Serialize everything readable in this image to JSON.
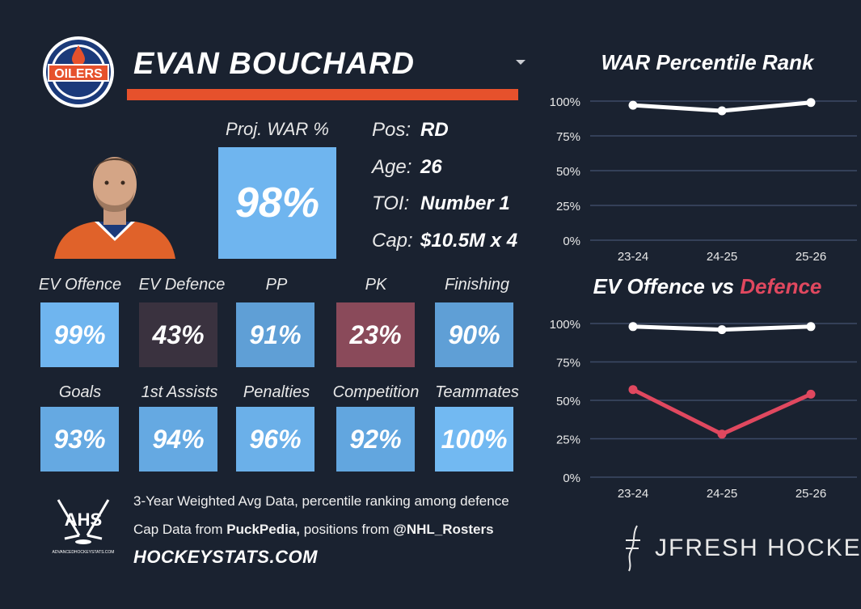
{
  "player": {
    "name": "EVAN BOUCHARD",
    "team_logo_text": "OILERS"
  },
  "proj_war": {
    "label": "Proj. WAR %",
    "value": "98%"
  },
  "info": [
    {
      "label": "Pos:",
      "value": "RD"
    },
    {
      "label": "Age:",
      "value": "26"
    },
    {
      "label": "TOI:",
      "value": "Number 1"
    },
    {
      "label": "Cap:",
      "value": "$10.5M x 4"
    }
  ],
  "metrics_row1": [
    {
      "label": "EV Offence",
      "value": "99%",
      "color": "#6fb5ef"
    },
    {
      "label": "EV Defence",
      "value": "43%",
      "color": "#3a323f"
    },
    {
      "label": "PP",
      "value": "91%",
      "color": "#5f9fd6"
    },
    {
      "label": "PK",
      "value": "23%",
      "color": "#8a4a5a"
    },
    {
      "label": "Finishing",
      "value": "90%",
      "color": "#5f9fd6"
    }
  ],
  "metrics_row2": [
    {
      "label": "Goals",
      "value": "93%",
      "color": "#65a9e2"
    },
    {
      "label": "1st Assists",
      "value": "94%",
      "color": "#65a9e2"
    },
    {
      "label": "Penalties",
      "value": "96%",
      "color": "#6bb0e9"
    },
    {
      "label": "Competition",
      "value": "92%",
      "color": "#62a6df"
    },
    {
      "label": "Teammates",
      "value": "100%",
      "color": "#72b9f2"
    }
  ],
  "footer": {
    "line1": "3-Year Weighted Avg Data, percentile ranking among defence",
    "line2_pre": "Cap Data from ",
    "line2_b1": "PuckPedia,",
    "line2_mid": " positions from ",
    "line2_b2": "@NHL_Rosters",
    "site": "HOCKEYSTATS.COM",
    "ahs": "AHS",
    "ahs_small": "ADVANCEDHOCKEYSTATS.COM",
    "brand": "JFRESH HOCKEY"
  },
  "colors": {
    "offence": "#ffffff",
    "defence": "#e0485f",
    "accent": "#e6512c"
  },
  "chart_data": [
    {
      "type": "line",
      "title": "WAR Percentile Rank",
      "categories": [
        "23-24",
        "24-25",
        "25-26"
      ],
      "yticks": [
        "0%",
        "25%",
        "50%",
        "75%",
        "100%"
      ],
      "ylim": [
        0,
        100
      ],
      "series": [
        {
          "name": "WAR",
          "values": [
            97,
            93,
            99
          ]
        }
      ]
    },
    {
      "type": "line",
      "title_part1": "EV Offence vs ",
      "title_part2": "Defence",
      "categories": [
        "23-24",
        "24-25",
        "25-26"
      ],
      "yticks": [
        "0%",
        "25%",
        "50%",
        "75%",
        "100%"
      ],
      "ylim": [
        0,
        100
      ],
      "series": [
        {
          "name": "EV Offence",
          "values": [
            98,
            96,
            98
          ]
        },
        {
          "name": "EV Defence",
          "values": [
            57,
            28,
            54
          ]
        }
      ]
    }
  ]
}
